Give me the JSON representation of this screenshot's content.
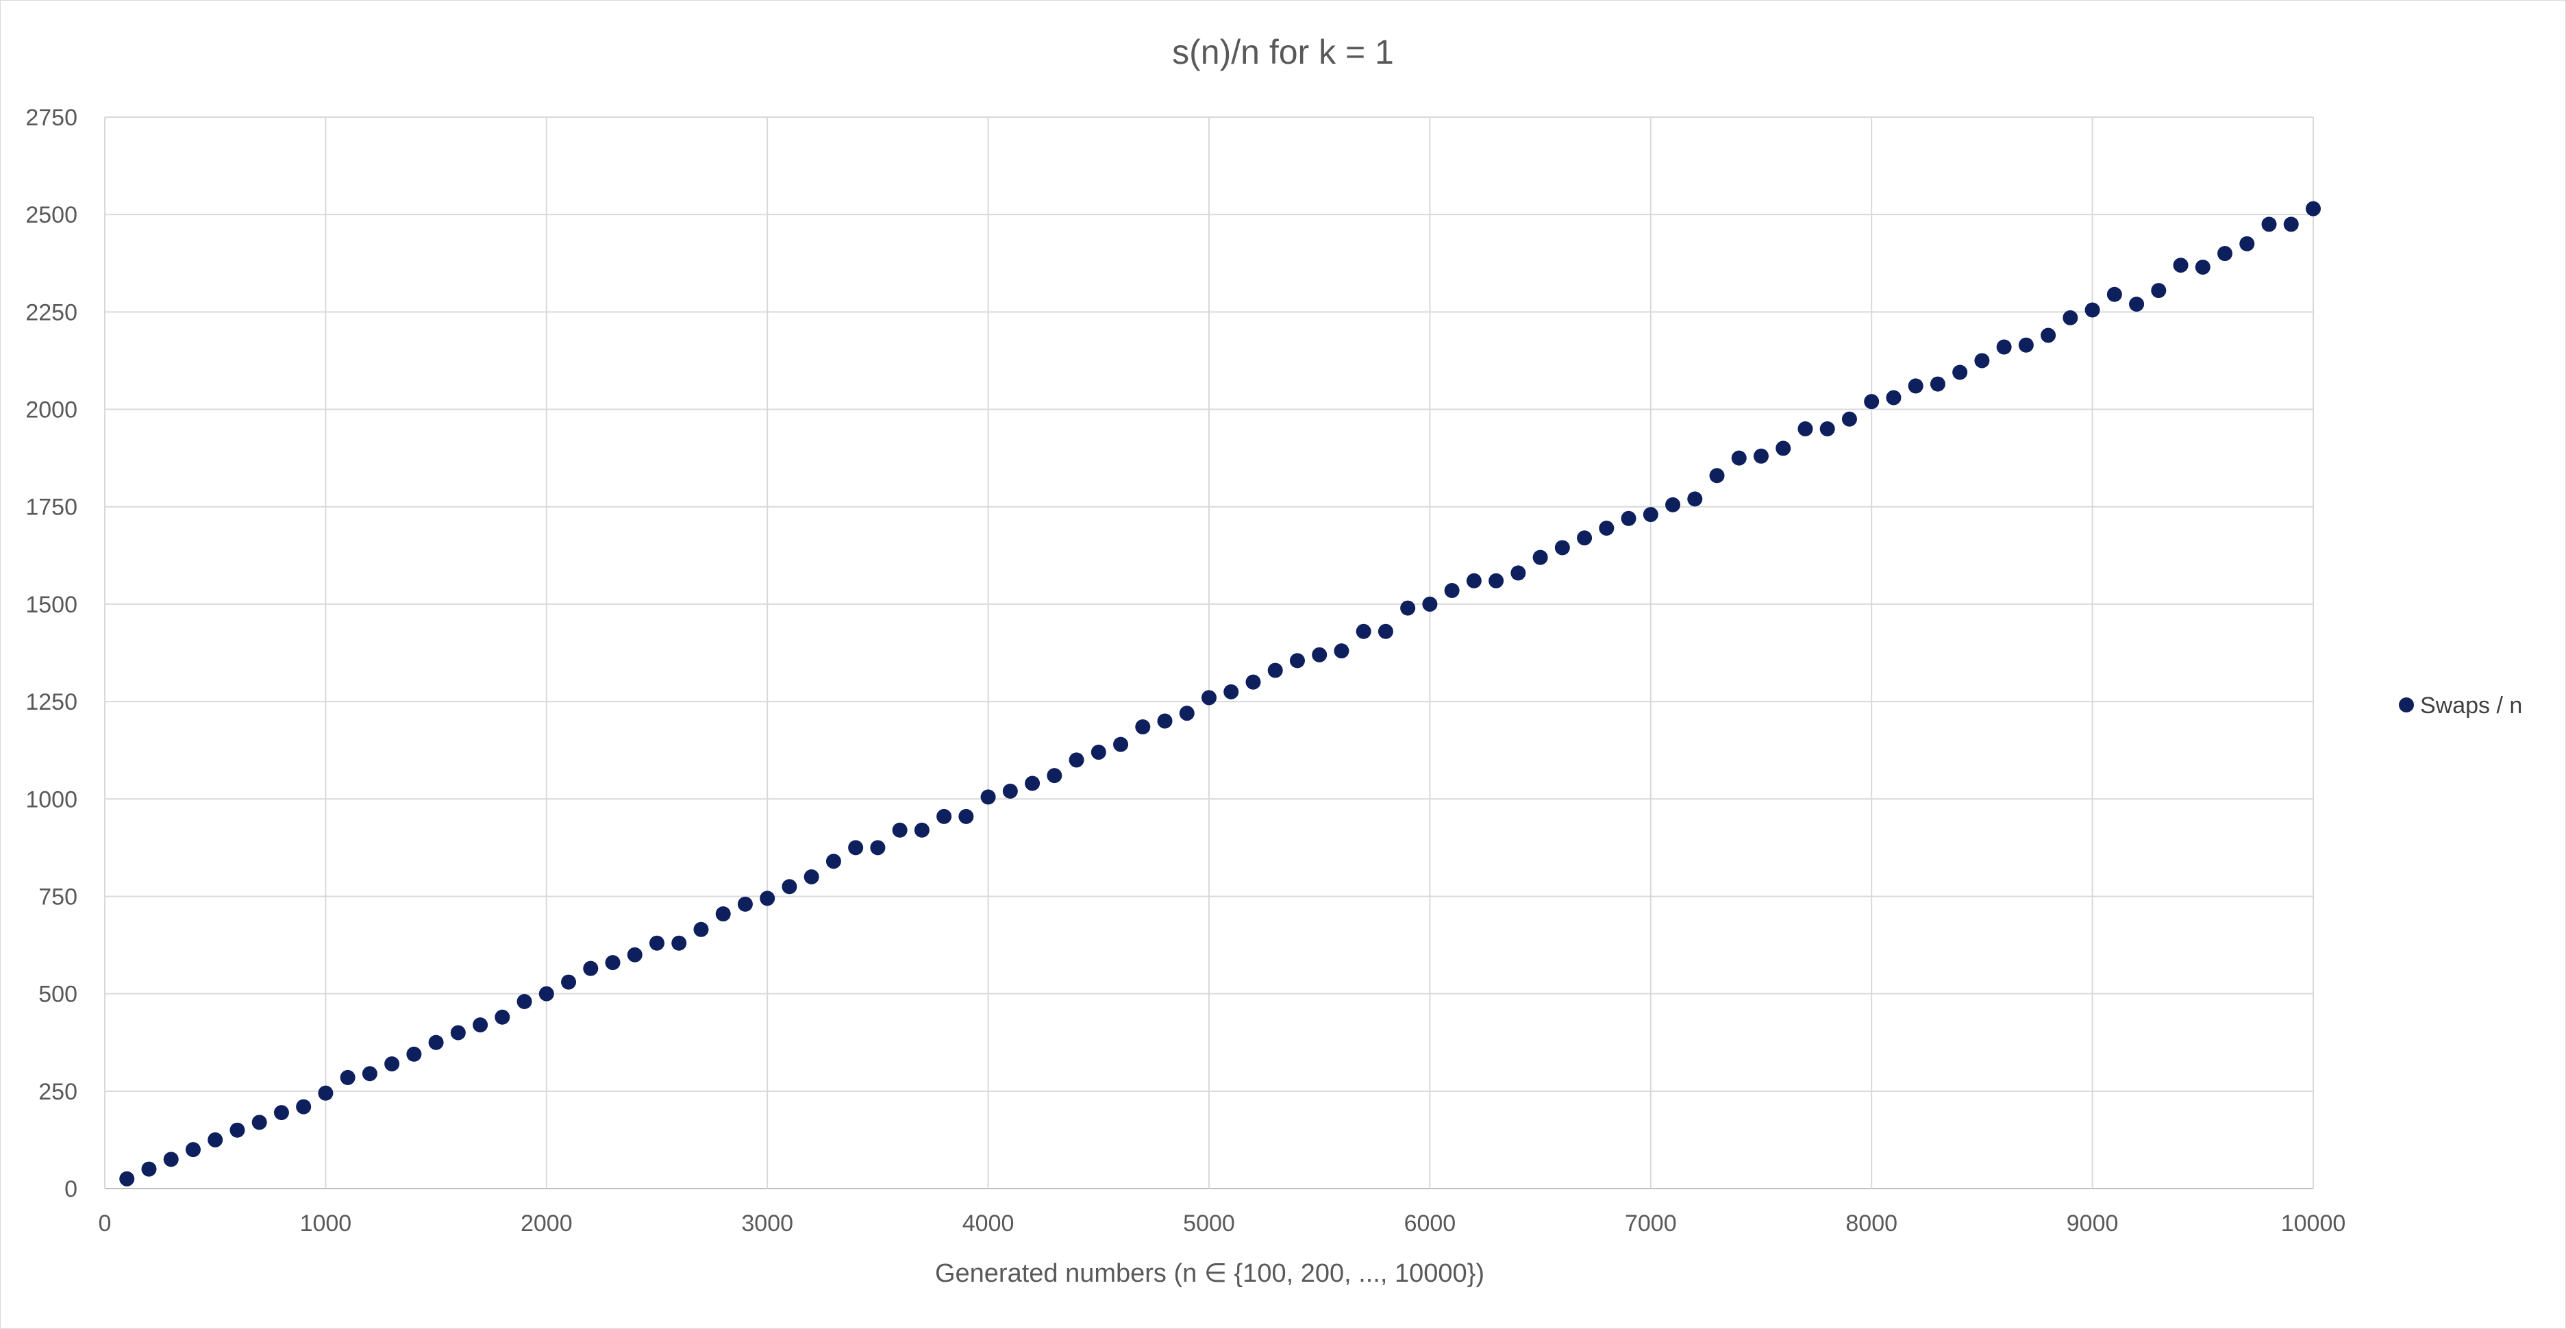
{
  "chart_data": {
    "type": "scatter",
    "title": "s(n)/n for k = 1",
    "xlabel": "Generated numbers (n ∈ {100, 200, ..., 10000})",
    "ylabel": "",
    "xlim": [
      0,
      10000
    ],
    "ylim": [
      0,
      2750
    ],
    "xticks": [
      0,
      1000,
      2000,
      3000,
      4000,
      5000,
      6000,
      7000,
      8000,
      9000,
      10000
    ],
    "yticks": [
      0,
      250,
      500,
      750,
      1000,
      1250,
      1500,
      1750,
      2000,
      2250,
      2500,
      2750
    ],
    "grid": true,
    "legend_position": "right",
    "colors": {
      "marker": "#0d1f5c",
      "grid": "#d9d9d9",
      "text": "#595959"
    },
    "series": [
      {
        "name": "Swaps / n",
        "x": [
          100,
          200,
          300,
          400,
          500,
          600,
          700,
          800,
          900,
          1000,
          1100,
          1200,
          1300,
          1400,
          1500,
          1600,
          1700,
          1800,
          1900,
          2000,
          2100,
          2200,
          2300,
          2400,
          2500,
          2600,
          2700,
          2800,
          2900,
          3000,
          3100,
          3200,
          3300,
          3400,
          3500,
          3600,
          3700,
          3800,
          3900,
          4000,
          4100,
          4200,
          4300,
          4400,
          4500,
          4600,
          4700,
          4800,
          4900,
          5000,
          5100,
          5200,
          5300,
          5400,
          5500,
          5600,
          5700,
          5800,
          5900,
          6000,
          6100,
          6200,
          6300,
          6400,
          6500,
          6600,
          6700,
          6800,
          6900,
          7000,
          7100,
          7200,
          7300,
          7400,
          7500,
          7600,
          7700,
          7800,
          7900,
          8000,
          8100,
          8200,
          8300,
          8400,
          8500,
          8600,
          8700,
          8800,
          8900,
          9000,
          9100,
          9200,
          9300,
          9400,
          9500,
          9600,
          9700,
          9800,
          9900,
          10000
        ],
        "y": [
          25,
          50,
          75,
          100,
          125,
          150,
          170,
          195,
          210,
          245,
          285,
          295,
          320,
          345,
          375,
          400,
          420,
          440,
          480,
          500,
          530,
          565,
          580,
          600,
          630,
          630,
          665,
          705,
          730,
          745,
          775,
          800,
          840,
          875,
          875,
          920,
          920,
          955,
          955,
          1005,
          1020,
          1040,
          1060,
          1100,
          1120,
          1140,
          1185,
          1200,
          1220,
          1260,
          1275,
          1300,
          1330,
          1355,
          1370,
          1380,
          1430,
          1430,
          1490,
          1500,
          1535,
          1560,
          1560,
          1580,
          1620,
          1645,
          1670,
          1695,
          1720,
          1730,
          1755,
          1770,
          1830,
          1875,
          1880,
          1900,
          1950,
          1950,
          1975,
          2020,
          2030,
          2060,
          2065,
          2095,
          2125,
          2160,
          2165,
          2190,
          2235,
          2255,
          2295,
          2270,
          2305,
          2370,
          2365,
          2400,
          2425,
          2475,
          2475,
          2515
        ]
      }
    ]
  }
}
